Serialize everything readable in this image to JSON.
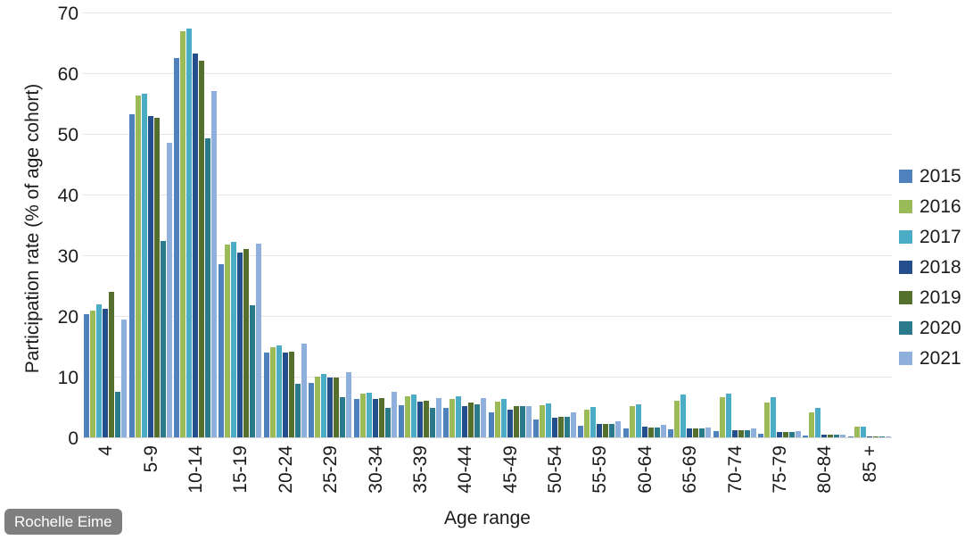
{
  "watermark": "Rochelle Eime",
  "chart_data": {
    "type": "bar",
    "title": "",
    "xlabel": "Age range",
    "ylabel": "Participation rate (% of age cohort)",
    "ylim": [
      0,
      70
    ],
    "y_ticks": [
      0,
      10,
      20,
      30,
      40,
      50,
      60,
      70
    ],
    "grid": "horizontal",
    "legend_position": "right",
    "categories": [
      "4",
      "5-9",
      "10-14",
      "15-19",
      "20-24",
      "25-29",
      "30-34",
      "35-39",
      "40-44",
      "45-49",
      "50-54",
      "55-59",
      "60-64",
      "65-69",
      "70-74",
      "75-79",
      "80-84",
      "85 +"
    ],
    "series": [
      {
        "name": "2015",
        "color": "#4f81bd",
        "values": [
          20.3,
          53.2,
          62.5,
          28.6,
          14.0,
          8.9,
          6.3,
          5.3,
          4.8,
          4.1,
          2.9,
          1.9,
          1.4,
          1.3,
          1.0,
          0.6,
          0.3,
          0.2
        ]
      },
      {
        "name": "2016",
        "color": "#9bbb59",
        "values": [
          20.9,
          56.3,
          66.9,
          31.7,
          14.9,
          10.0,
          7.2,
          6.8,
          6.3,
          5.9,
          5.3,
          4.6,
          5.2,
          6.1,
          6.6,
          5.8,
          4.1,
          1.7
        ]
      },
      {
        "name": "2017",
        "color": "#4bacc6",
        "values": [
          21.9,
          56.6,
          67.4,
          32.2,
          15.1,
          10.4,
          7.3,
          7.1,
          6.8,
          6.3,
          5.6,
          5.0,
          5.5,
          7.0,
          7.2,
          6.6,
          4.8,
          1.8
        ]
      },
      {
        "name": "2018",
        "color": "#254e8c",
        "values": [
          21.2,
          53.0,
          63.3,
          30.4,
          14.0,
          9.8,
          6.3,
          5.9,
          5.2,
          4.6,
          3.3,
          2.2,
          1.7,
          1.5,
          1.2,
          0.9,
          0.5,
          0.1
        ]
      },
      {
        "name": "2019",
        "color": "#556f2d",
        "values": [
          24.0,
          52.6,
          62.0,
          31.0,
          14.1,
          9.8,
          6.5,
          6.1,
          5.8,
          5.2,
          3.4,
          2.2,
          1.6,
          1.5,
          1.2,
          0.9,
          0.4,
          0.1
        ]
      },
      {
        "name": "2020",
        "color": "#2b7a8c",
        "values": [
          7.5,
          32.3,
          49.2,
          21.8,
          8.8,
          6.6,
          4.8,
          4.9,
          5.4,
          5.2,
          3.4,
          2.2,
          1.6,
          1.5,
          1.2,
          0.9,
          0.4,
          0.1
        ]
      },
      {
        "name": "2021",
        "color": "#8fb0dc",
        "values": [
          19.4,
          48.5,
          57.1,
          31.9,
          15.4,
          10.7,
          7.5,
          6.5,
          6.5,
          5.2,
          4.1,
          2.7,
          2.0,
          1.6,
          1.4,
          1.0,
          0.5,
          0.1
        ]
      }
    ]
  }
}
